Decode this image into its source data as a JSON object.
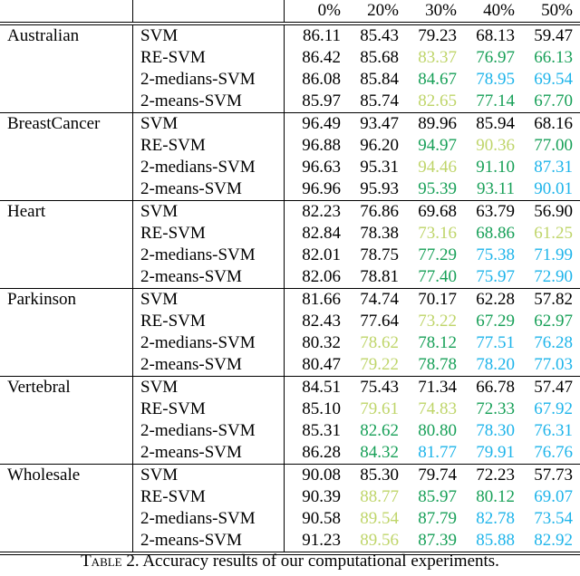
{
  "colors": {
    "black": "#000000",
    "lightgreen": "#bfd56a",
    "green": "#18a058",
    "blue": "#1eb4ea"
  },
  "header": [
    "",
    "",
    "0%",
    "20%",
    "30%",
    "40%",
    "50%"
  ],
  "groups": [
    {
      "dataset": "Australian",
      "rows": [
        {
          "method": "SVM",
          "values": [
            "86.11",
            "85.43",
            "79.23",
            "68.13",
            "59.47"
          ],
          "colors": [
            "black",
            "black",
            "black",
            "black",
            "black"
          ]
        },
        {
          "method": "RE-SVM",
          "values": [
            "86.42",
            "85.68",
            "83.37",
            "76.97",
            "66.13"
          ],
          "colors": [
            "black",
            "black",
            "lightgreen",
            "green",
            "green"
          ]
        },
        {
          "method": "2-medians-SVM",
          "values": [
            "86.08",
            "85.84",
            "84.67",
            "78.95",
            "69.54"
          ],
          "colors": [
            "black",
            "black",
            "green",
            "blue",
            "blue"
          ]
        },
        {
          "method": "2-means-SVM",
          "values": [
            "85.97",
            "85.74",
            "82.65",
            "77.14",
            "67.70"
          ],
          "colors": [
            "black",
            "black",
            "lightgreen",
            "green",
            "green"
          ]
        }
      ]
    },
    {
      "dataset": "BreastCancer",
      "rows": [
        {
          "method": "SVM",
          "values": [
            "96.49",
            "93.47",
            "89.96",
            "85.94",
            "68.16"
          ],
          "colors": [
            "black",
            "black",
            "black",
            "black",
            "black"
          ]
        },
        {
          "method": "RE-SVM",
          "values": [
            "96.88",
            "96.20",
            "94.97",
            "90.36",
            "77.00"
          ],
          "colors": [
            "black",
            "black",
            "green",
            "lightgreen",
            "green"
          ]
        },
        {
          "method": "2-medians-SVM",
          "values": [
            "96.63",
            "95.31",
            "94.46",
            "91.10",
            "87.31"
          ],
          "colors": [
            "black",
            "black",
            "lightgreen",
            "green",
            "blue"
          ]
        },
        {
          "method": "2-means-SVM",
          "values": [
            "96.96",
            "95.93",
            "95.39",
            "93.11",
            "90.01"
          ],
          "colors": [
            "black",
            "black",
            "green",
            "green",
            "blue"
          ]
        }
      ]
    },
    {
      "dataset": "Heart",
      "rows": [
        {
          "method": "SVM",
          "values": [
            "82.23",
            "76.86",
            "69.68",
            "63.79",
            "56.90"
          ],
          "colors": [
            "black",
            "black",
            "black",
            "black",
            "black"
          ]
        },
        {
          "method": "RE-SVM",
          "values": [
            "82.84",
            "78.38",
            "73.16",
            "68.86",
            "61.25"
          ],
          "colors": [
            "black",
            "black",
            "lightgreen",
            "green",
            "lightgreen"
          ]
        },
        {
          "method": "2-medians-SVM",
          "values": [
            "82.01",
            "78.75",
            "77.29",
            "75.38",
            "71.99"
          ],
          "colors": [
            "black",
            "black",
            "green",
            "blue",
            "blue"
          ]
        },
        {
          "method": "2-means-SVM",
          "values": [
            "82.06",
            "78.81",
            "77.40",
            "75.97",
            "72.90"
          ],
          "colors": [
            "black",
            "black",
            "green",
            "blue",
            "blue"
          ]
        }
      ]
    },
    {
      "dataset": "Parkinson",
      "rows": [
        {
          "method": "SVM",
          "values": [
            "81.66",
            "74.74",
            "70.17",
            "62.28",
            "57.82"
          ],
          "colors": [
            "black",
            "black",
            "black",
            "black",
            "black"
          ]
        },
        {
          "method": "RE-SVM",
          "values": [
            "82.43",
            "77.64",
            "73.22",
            "67.29",
            "62.97"
          ],
          "colors": [
            "black",
            "black",
            "lightgreen",
            "green",
            "green"
          ]
        },
        {
          "method": "2-medians-SVM",
          "values": [
            "80.32",
            "78.62",
            "78.12",
            "77.51",
            "76.28"
          ],
          "colors": [
            "black",
            "lightgreen",
            "green",
            "blue",
            "blue"
          ]
        },
        {
          "method": "2-means-SVM",
          "values": [
            "80.47",
            "79.22",
            "78.78",
            "78.20",
            "77.03"
          ],
          "colors": [
            "black",
            "lightgreen",
            "green",
            "blue",
            "blue"
          ]
        }
      ]
    },
    {
      "dataset": "Vertebral",
      "rows": [
        {
          "method": "SVM",
          "values": [
            "84.51",
            "75.43",
            "71.34",
            "66.78",
            "57.47"
          ],
          "colors": [
            "black",
            "black",
            "black",
            "black",
            "black"
          ]
        },
        {
          "method": "RE-SVM",
          "values": [
            "85.10",
            "79.61",
            "74.83",
            "72.33",
            "67.92"
          ],
          "colors": [
            "black",
            "lightgreen",
            "lightgreen",
            "green",
            "blue"
          ]
        },
        {
          "method": "2-medians-SVM",
          "values": [
            "85.31",
            "82.62",
            "80.80",
            "78.30",
            "76.31"
          ],
          "colors": [
            "black",
            "green",
            "green",
            "blue",
            "blue"
          ]
        },
        {
          "method": "2-means-SVM",
          "values": [
            "86.28",
            "84.32",
            "81.77",
            "79.91",
            "76.76"
          ],
          "colors": [
            "black",
            "green",
            "blue",
            "blue",
            "blue"
          ]
        }
      ]
    },
    {
      "dataset": "Wholesale",
      "rows": [
        {
          "method": "SVM",
          "values": [
            "90.08",
            "85.30",
            "79.74",
            "72.23",
            "57.73"
          ],
          "colors": [
            "black",
            "black",
            "black",
            "black",
            "black"
          ]
        },
        {
          "method": "RE-SVM",
          "values": [
            "90.39",
            "88.77",
            "85.97",
            "80.12",
            "69.07"
          ],
          "colors": [
            "black",
            "lightgreen",
            "green",
            "green",
            "blue"
          ]
        },
        {
          "method": "2-medians-SVM",
          "values": [
            "90.58",
            "89.54",
            "87.79",
            "82.78",
            "73.54"
          ],
          "colors": [
            "black",
            "lightgreen",
            "green",
            "blue",
            "blue"
          ]
        },
        {
          "method": "2-means-SVM",
          "values": [
            "91.23",
            "89.56",
            "87.39",
            "85.88",
            "82.92"
          ],
          "colors": [
            "black",
            "lightgreen",
            "green",
            "blue",
            "blue"
          ]
        }
      ]
    }
  ],
  "caption": {
    "label": "Table 2.",
    "text": "Accuracy results of our computational experiments."
  }
}
